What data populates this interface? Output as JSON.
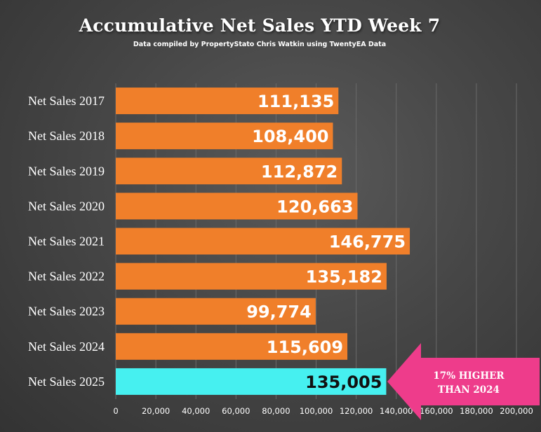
{
  "title": "Accumulative Net Sales YTD Week 7",
  "subtitle": "Data compiled by PropertyStato Chris Watkin using TwentyEA Data",
  "chart_data": {
    "type": "bar",
    "orientation": "horizontal",
    "categories": [
      "Net Sales 2017",
      "Net Sales 2018",
      "Net Sales 2019",
      "Net Sales 2020",
      "Net Sales 2021",
      "Net Sales 2022",
      "Net Sales 2023",
      "Net Sales 2024",
      "Net Sales 2025"
    ],
    "values": [
      111135,
      108400,
      112872,
      120663,
      146775,
      135182,
      99774,
      115609,
      135005
    ],
    "value_labels": [
      "111,135",
      "108,400",
      "112,872",
      "120,663",
      "146,775",
      "135,182",
      "99,774",
      "115,609",
      "135,005"
    ],
    "xlim": [
      0,
      200000
    ],
    "ticks": [
      0,
      20000,
      40000,
      60000,
      80000,
      100000,
      120000,
      140000,
      160000,
      180000,
      200000
    ],
    "tick_labels": [
      "0",
      "20,000",
      "40,000",
      "60,000",
      "80,000",
      "100,000",
      "120,000",
      "140,000",
      "160,000",
      "180,000",
      "200,000"
    ],
    "grid": true,
    "bar_color": "#f07f2a",
    "highlight_color": "#46f0f0",
    "highlight_index": 8,
    "callout": {
      "lines": [
        "17% HIGHER",
        "THAN 2024"
      ],
      "color": "#ee3c8b"
    }
  }
}
